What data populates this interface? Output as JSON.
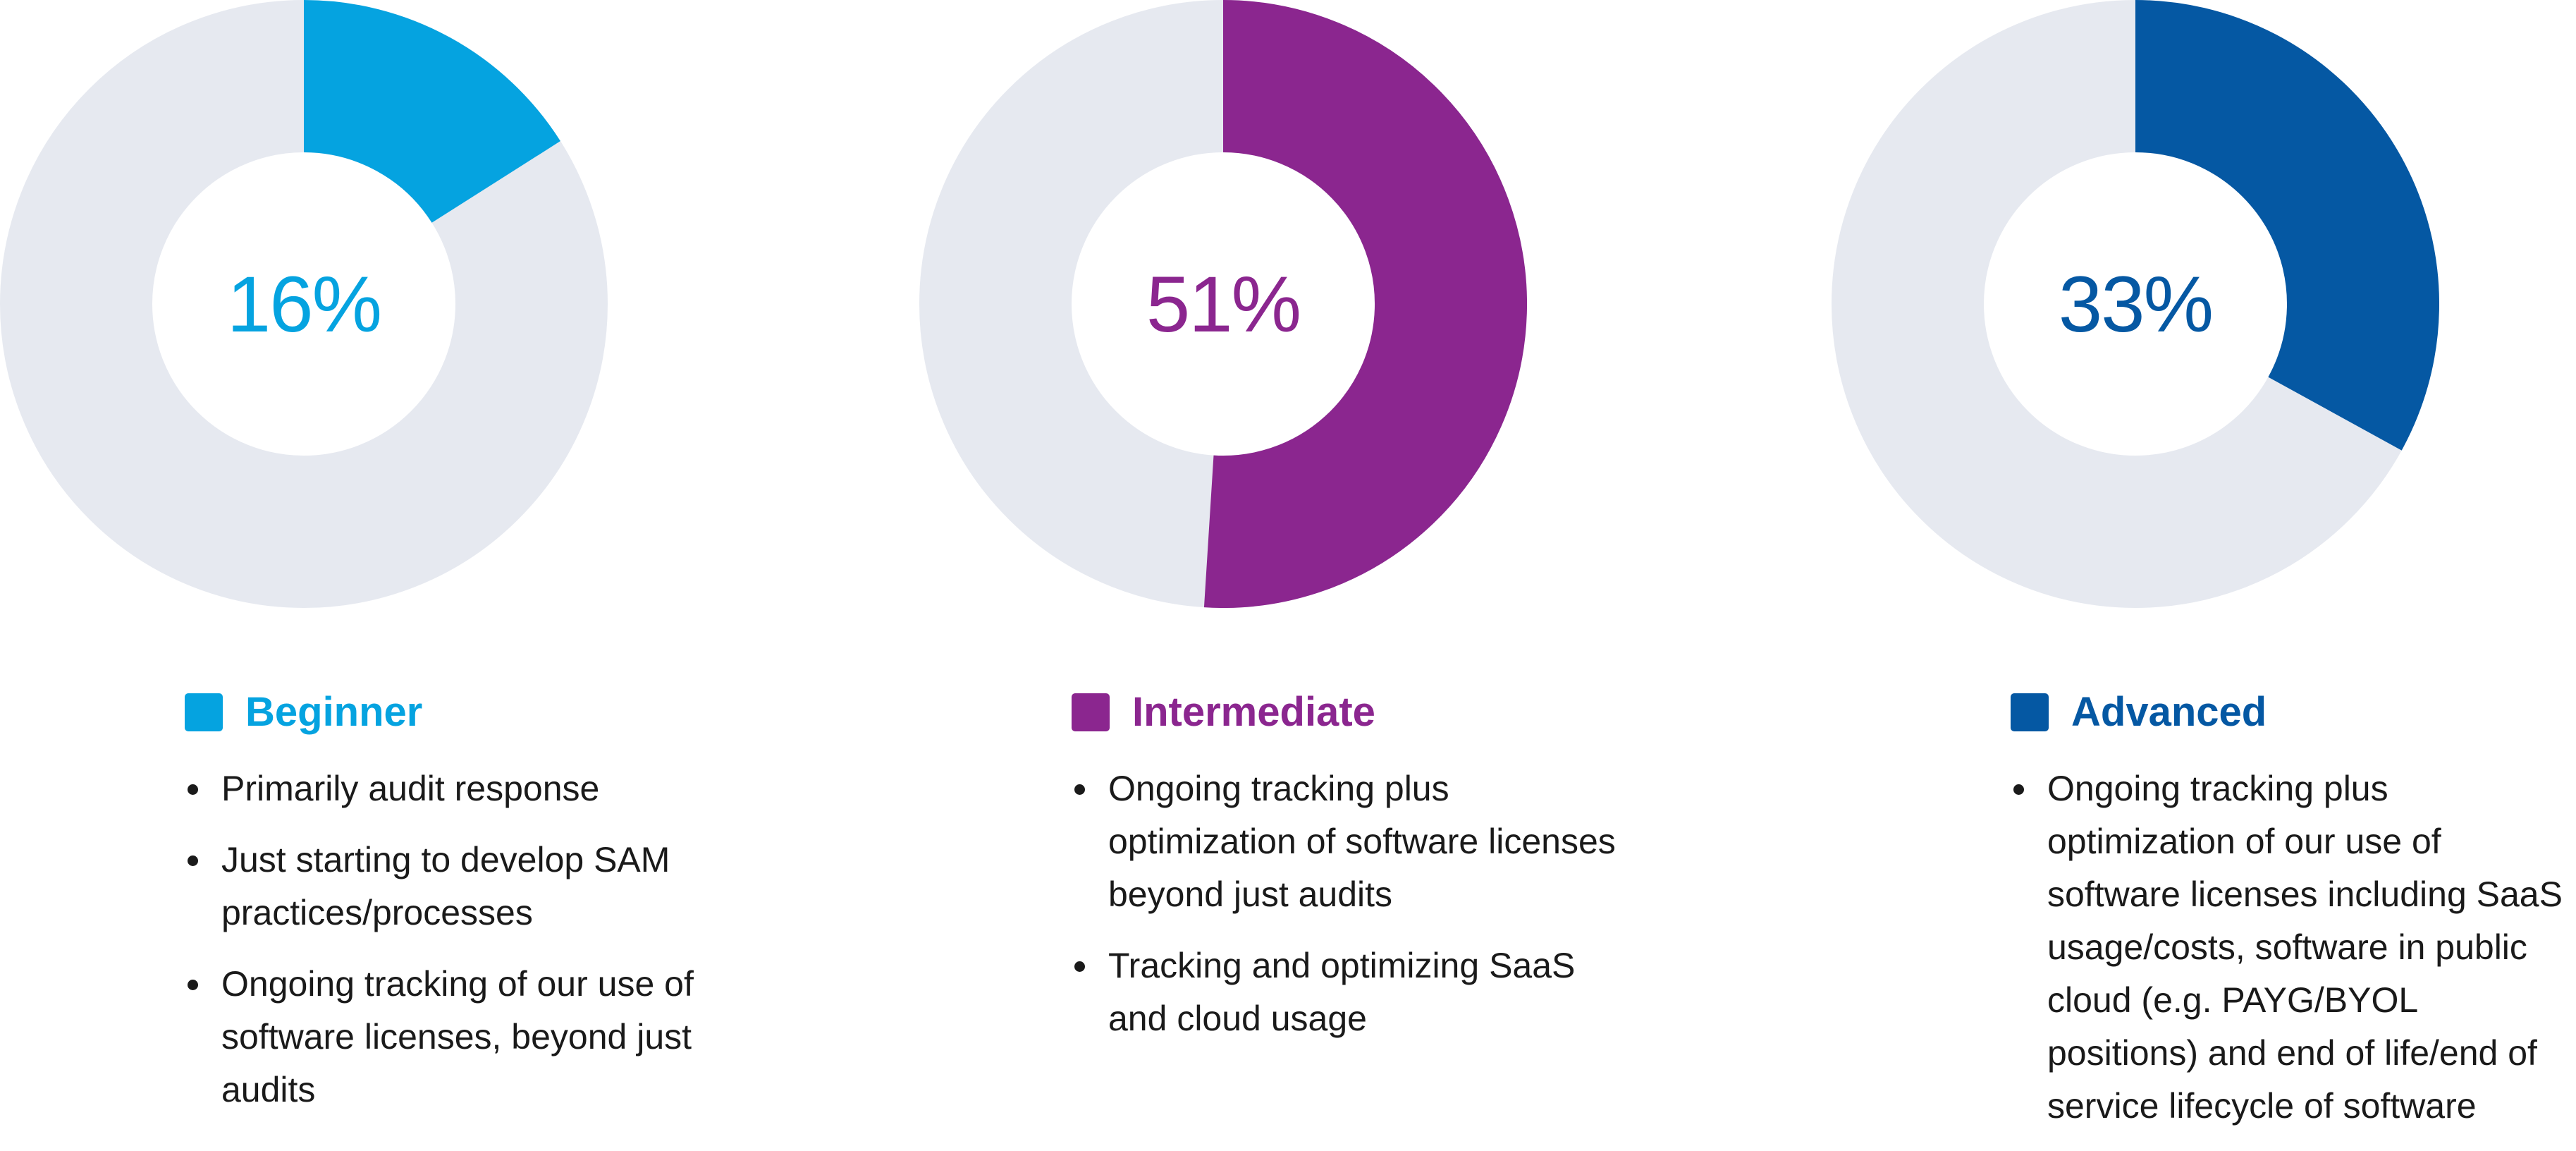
{
  "chart_data": [
    {
      "type": "pie",
      "value": 16,
      "center_label": "16%",
      "color": "#05a3e0",
      "track_color": "#e6e9f0",
      "series_label": "Beginner",
      "bullets": [
        "Primarily audit response",
        "Just starting to develop SAM practices/processes",
        "Ongoing tracking of our use of software licenses, beyond just audits"
      ]
    },
    {
      "type": "pie",
      "value": 51,
      "center_label": "51%",
      "color": "#8b268f",
      "track_color": "#e6e9f0",
      "series_label": "Intermediate",
      "bullets": [
        "Ongoing tracking plus optimization of software licenses beyond just audits",
        "Tracking and optimizing SaaS and cloud usage"
      ]
    },
    {
      "type": "pie",
      "value": 33,
      "center_label": "33%",
      "color": "#0558a3",
      "track_color": "#e6e9f0",
      "series_label": "Advanced",
      "bullets": [
        "Ongoing tracking plus optimization of our use of software licenses including SaaS usage/costs, software in public cloud (e.g. PAYG/BYOL positions) and end of life/end of service lifecycle of software"
      ]
    }
  ]
}
